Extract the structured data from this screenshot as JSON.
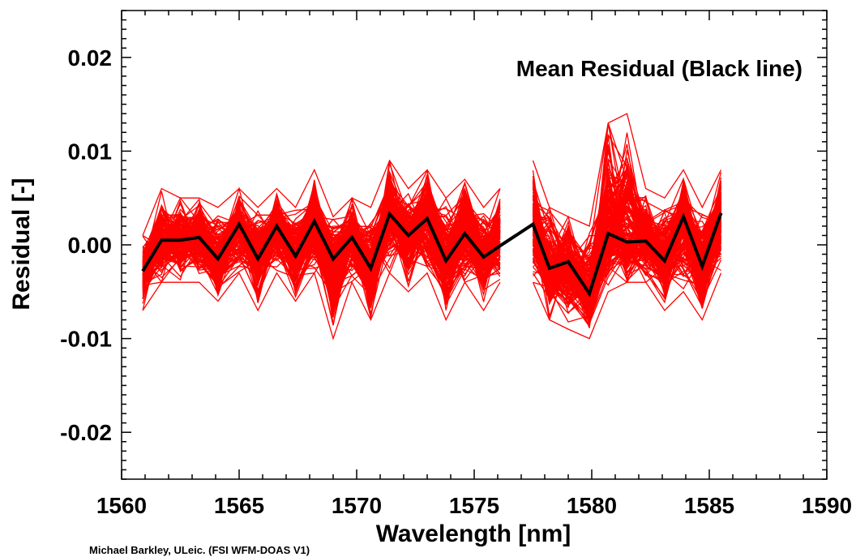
{
  "chart_data": {
    "type": "line",
    "title": "",
    "xlabel": "Wavelength [nm]",
    "ylabel": "Residual [-]",
    "xlim": [
      1560,
      1590
    ],
    "ylim": [
      -0.025,
      0.025
    ],
    "x_ticks": [
      1560,
      1565,
      1570,
      1575,
      1580,
      1585,
      1590
    ],
    "x_tick_labels": [
      "1560",
      "1565",
      "1570",
      "1575",
      "1580",
      "1585",
      "1590"
    ],
    "y_ticks": [
      -0.02,
      -0.01,
      0.0,
      0.01,
      0.02
    ],
    "y_tick_labels": [
      "-0.02",
      "-0.01",
      "0.00",
      "0.01",
      "0.02"
    ],
    "grid": false,
    "annotation": "Mean Residual (Black line)",
    "credit": "Michael Barkley, ULeic. (FSI WFM-DOAS V1)",
    "individual_residuals": {
      "color": "#ff0000",
      "count": 180,
      "band": {
        "x": [
          1560.9,
          1561.7,
          1562.5,
          1563.3,
          1564.1,
          1565.0,
          1565.8,
          1566.6,
          1567.4,
          1568.2,
          1569.0,
          1569.8,
          1570.6,
          1571.4,
          1572.2,
          1573.0,
          1573.8,
          1574.6,
          1575.4,
          1576.1,
          1577.5,
          1578.2,
          1579.0,
          1579.9,
          1580.7,
          1581.5,
          1582.3,
          1583.1,
          1583.9,
          1584.7,
          1585.5
        ],
        "upper": [
          0.001,
          0.006,
          0.005,
          0.005,
          0.004,
          0.006,
          0.004,
          0.006,
          0.004,
          0.008,
          0.003,
          0.005,
          0.004,
          0.009,
          0.006,
          0.008,
          0.005,
          0.007,
          0.004,
          0.006,
          0.009,
          0.004,
          0.003,
          0.002,
          0.013,
          0.014,
          0.006,
          0.005,
          0.008,
          0.004,
          0.008
        ],
        "lower": [
          -0.007,
          -0.004,
          -0.004,
          -0.004,
          -0.006,
          -0.003,
          -0.007,
          -0.003,
          -0.006,
          -0.003,
          -0.01,
          -0.004,
          -0.008,
          -0.003,
          -0.005,
          -0.003,
          -0.008,
          -0.004,
          -0.007,
          -0.004,
          -0.004,
          -0.008,
          -0.009,
          -0.01,
          -0.005,
          -0.004,
          -0.004,
          -0.007,
          -0.005,
          -0.008,
          -0.003
        ]
      }
    },
    "series": [
      {
        "color": "#000000",
        "x": [
          1560.9,
          1561.7,
          1562.5,
          1563.3,
          1564.1,
          1565.0,
          1565.8,
          1566.6,
          1567.4,
          1568.2,
          1569.0,
          1569.8,
          1570.6,
          1571.4,
          1572.2,
          1573.0,
          1573.8,
          1574.6,
          1575.4,
          1576.1,
          1577.5,
          1578.2,
          1579.0,
          1579.9,
          1580.7,
          1581.5,
          1582.3,
          1583.1,
          1583.9,
          1584.7,
          1585.5
        ],
        "y": [
          -0.0028,
          0.0005,
          0.0005,
          0.0008,
          -0.0015,
          0.0022,
          -0.0015,
          0.002,
          -0.0012,
          0.0025,
          -0.0015,
          0.0008,
          -0.0025,
          0.0033,
          0.001,
          0.0028,
          -0.0017,
          0.0012,
          -0.0013,
          -0.0001,
          0.0022,
          -0.0025,
          -0.0018,
          -0.0052,
          0.0012,
          0.0003,
          0.0004,
          -0.0017,
          0.003,
          -0.0023,
          0.0034
        ]
      }
    ]
  }
}
